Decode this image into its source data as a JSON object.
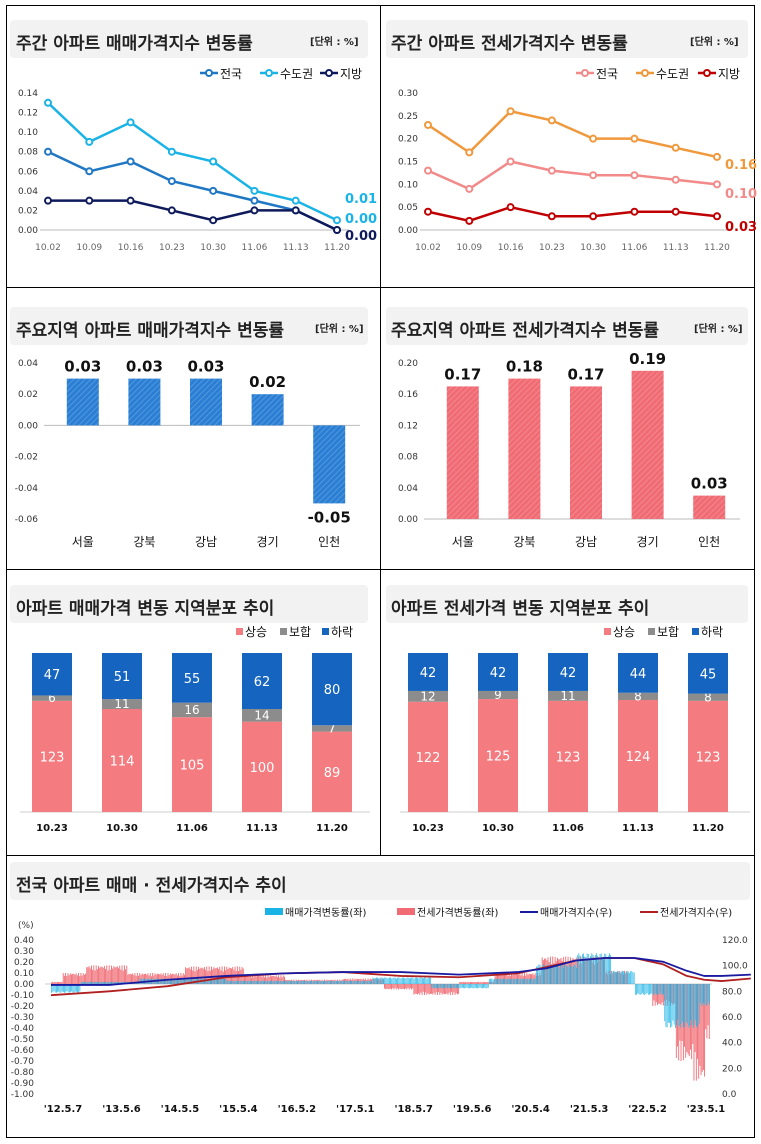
{
  "colors": {
    "nation": "#1f77c4",
    "capital": "#1ab3e6",
    "local": "#0f1a5c",
    "j_nation": "#f28a8a",
    "j_capital": "#f0983c",
    "j_local": "#c00000",
    "blue_bar": "#2a7fd4",
    "red_bar": "#f06b73",
    "up": "#f47b7f",
    "flat": "#8c8c8c",
    "down": "#1565c0"
  },
  "p1": {
    "title": "주간 아파트 매매가격지수 변동률",
    "unit": "[단위 : %]",
    "chart_data": {
      "type": "line",
      "categories": [
        "10.02",
        "10.09",
        "10.16",
        "10.23",
        "10.30",
        "11.06",
        "11.13",
        "11.20"
      ],
      "ylim": [
        0,
        0.14
      ],
      "yticks": [
        "0.14",
        "0.12",
        "0.10",
        "0.08",
        "0.06",
        "0.04",
        "0.02",
        "0.00"
      ],
      "series": [
        {
          "name": "전국",
          "values": [
            0.08,
            0.06,
            0.07,
            0.05,
            0.04,
            0.03,
            0.02,
            0.0
          ]
        },
        {
          "name": "수도권",
          "values": [
            0.13,
            0.09,
            0.11,
            0.08,
            0.07,
            0.04,
            0.03,
            0.01
          ]
        },
        {
          "name": "지방",
          "values": [
            0.03,
            0.03,
            0.03,
            0.02,
            0.01,
            0.02,
            0.02,
            0.0
          ]
        }
      ],
      "end_labels": [
        "0.01",
        "0.00",
        "0.00"
      ]
    }
  },
  "p2": {
    "title": "주간 아파트 전세가격지수 변동률",
    "unit": "[단위 : %]",
    "chart_data": {
      "type": "line",
      "categories": [
        "10.02",
        "10.09",
        "10.16",
        "10.23",
        "10.30",
        "11.06",
        "11.13",
        "11.20"
      ],
      "ylim": [
        0,
        0.3
      ],
      "yticks": [
        "0.30",
        "0.25",
        "0.20",
        "0.15",
        "0.10",
        "0.05",
        "0.00"
      ],
      "series": [
        {
          "name": "전국",
          "values": [
            0.13,
            0.09,
            0.15,
            0.13,
            0.12,
            0.12,
            0.11,
            0.1
          ]
        },
        {
          "name": "수도권",
          "values": [
            0.23,
            0.17,
            0.26,
            0.24,
            0.2,
            0.2,
            0.18,
            0.16
          ]
        },
        {
          "name": "지방",
          "values": [
            0.04,
            0.02,
            0.05,
            0.03,
            0.03,
            0.04,
            0.04,
            0.03
          ]
        }
      ],
      "end_labels": [
        "0.16",
        "0.10",
        "0.03"
      ]
    }
  },
  "p3": {
    "title": "주요지역 아파트 매매가격지수 변동률",
    "unit": "[단위 : %]",
    "chart_data": {
      "type": "bar",
      "categories": [
        "서울",
        "강북",
        "강남",
        "경기",
        "인천"
      ],
      "values": [
        0.03,
        0.03,
        0.03,
        0.02,
        -0.05
      ],
      "labels": [
        "0.03",
        "0.03",
        "0.03",
        "0.02",
        "-0.05"
      ],
      "ylim": [
        -0.06,
        0.04
      ],
      "yticks": [
        "0.04",
        "0.02",
        "0.00",
        "-0.02",
        "-0.04",
        "-0.06"
      ]
    }
  },
  "p4": {
    "title": "주요지역 아파트 전세가격지수 변동률",
    "unit": "[단위 : %]",
    "chart_data": {
      "type": "bar",
      "categories": [
        "서울",
        "강북",
        "강남",
        "경기",
        "인천"
      ],
      "values": [
        0.17,
        0.18,
        0.17,
        0.19,
        0.03
      ],
      "labels": [
        "0.17",
        "0.18",
        "0.17",
        "0.19",
        "0.03"
      ],
      "ylim": [
        0,
        0.2
      ],
      "yticks": [
        "0.20",
        "0.16",
        "0.12",
        "0.08",
        "0.04",
        "0.00"
      ]
    }
  },
  "p5": {
    "title": "아파트 매매가격 변동 지역분포 추이",
    "chart_data": {
      "type": "bar",
      "stacked": true,
      "categories": [
        "10.23",
        "10.30",
        "11.06",
        "11.13",
        "11.20"
      ],
      "series": [
        {
          "name": "상승",
          "values": [
            123,
            114,
            105,
            100,
            89
          ]
        },
        {
          "name": "보합",
          "values": [
            6,
            11,
            16,
            14,
            7
          ]
        },
        {
          "name": "하락",
          "values": [
            47,
            51,
            55,
            62,
            80
          ]
        }
      ]
    }
  },
  "p6": {
    "title": "아파트 전세가격 변동 지역분포 추이",
    "chart_data": {
      "type": "bar",
      "stacked": true,
      "categories": [
        "10.23",
        "10.30",
        "11.06",
        "11.13",
        "11.20"
      ],
      "series": [
        {
          "name": "상승",
          "values": [
            122,
            125,
            123,
            124,
            123
          ]
        },
        {
          "name": "보합",
          "values": [
            12,
            9,
            11,
            8,
            8
          ]
        },
        {
          "name": "하락",
          "values": [
            42,
            42,
            42,
            44,
            45
          ]
        }
      ]
    }
  },
  "p7": {
    "title": "전국 아파트 매매 · 전세가격지수 추이",
    "unit": "(%)",
    "legend": [
      "매매가격변동률(좌)",
      "전세가격변동률(좌)",
      "매매가격지수(우)",
      "전세가격지수(우)"
    ],
    "chart_data": {
      "type": "bar",
      "left_ylim": [
        -1.0,
        0.4
      ],
      "right_ylim": [
        0,
        120
      ],
      "left_ticks": [
        "0.40",
        "0.30",
        "0.20",
        "0.10",
        "0.00",
        "-0.10",
        "-0.20",
        "-0.30",
        "-0.40",
        "-0.50",
        "-0.60",
        "-0.70",
        "-0.80",
        "-0.90",
        "-1.00"
      ],
      "right_ticks": [
        "120.0",
        "100.0",
        "80.0",
        "60.0",
        "40.0",
        "20.0",
        "0.0"
      ],
      "xticks": [
        "'12.5.7",
        "'13.5.6",
        "'14.5.5",
        "'15.5.4",
        "'16.5.2",
        "'17.5.1",
        "'18.5.7",
        "'19.5.6",
        "'20.5.4",
        "'21.5.3",
        "'22.5.2",
        "'23.5.1"
      ],
      "sale_index_series": [
        [
          0,
          85
        ],
        [
          1,
          85
        ],
        [
          2,
          89
        ],
        [
          3,
          92
        ],
        [
          4,
          94
        ],
        [
          5,
          95
        ],
        [
          6,
          95
        ],
        [
          7,
          93
        ],
        [
          8,
          95
        ],
        [
          8.5,
          98
        ],
        [
          9,
          104
        ],
        [
          9.5,
          106
        ],
        [
          10,
          106
        ],
        [
          10.5,
          103
        ],
        [
          10.9,
          96
        ],
        [
          11.2,
          92
        ],
        [
          11.5,
          92
        ],
        [
          12,
          93
        ]
      ],
      "jeonse_index_series": [
        [
          0,
          77
        ],
        [
          1,
          80
        ],
        [
          2,
          84
        ],
        [
          3,
          91
        ],
        [
          4,
          94
        ],
        [
          5,
          95
        ],
        [
          6,
          92
        ],
        [
          7,
          91
        ],
        [
          8,
          94
        ],
        [
          8.5,
          99
        ],
        [
          9,
          104
        ],
        [
          9.5,
          106
        ],
        [
          10,
          106
        ],
        [
          10.5,
          101
        ],
        [
          10.9,
          92
        ],
        [
          11.2,
          89
        ],
        [
          11.5,
          88
        ],
        [
          12,
          90
        ]
      ]
    }
  }
}
